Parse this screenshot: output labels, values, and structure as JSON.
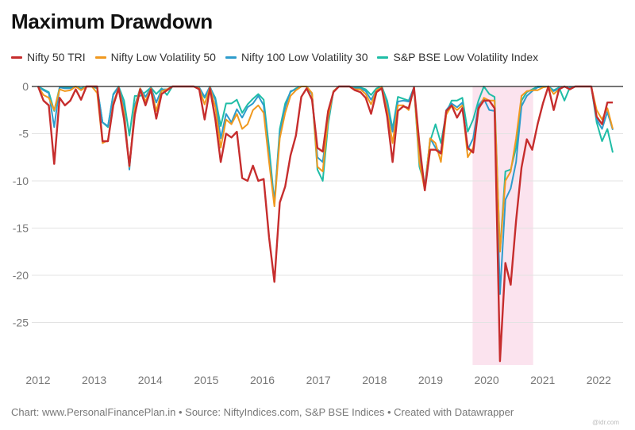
{
  "title": "Maximum Drawdown",
  "footer": "Chart: www.PersonalFinancePlan.in • Source: NiftyIndices.com, S&P BSE Indices • Created with Datawrapper",
  "watermark": "@idr.com",
  "chart_data": {
    "type": "line",
    "title": "Maximum Drawdown",
    "xlabel": "",
    "ylabel": "",
    "ylim": [
      -29.5,
      0
    ],
    "xlim": [
      2012.0,
      2022.25
    ],
    "yticks": [
      0,
      -5,
      -10,
      -15,
      -20,
      -25
    ],
    "xticks": [
      "2012",
      "2013",
      "2014",
      "2015",
      "2016",
      "2017",
      "2018",
      "2019",
      "2020",
      "2021",
      "2022"
    ],
    "grid": true,
    "legend": "top-left",
    "highlight_band": {
      "x_start": 2019.75,
      "x_end": 2020.83,
      "color": "#fbe3ee"
    },
    "series": [
      {
        "name": "Nifty 50 TRI",
        "color": "#c62d2d",
        "values": [
          0,
          -1.5,
          -2,
          -8.2,
          -1.2,
          -2,
          -1.5,
          -0.3,
          -1.4,
          0,
          0,
          0,
          -5.8,
          -5.8,
          -2,
          -0.2,
          -3.5,
          -8.4,
          -3,
          -0.3,
          -2,
          -0.3,
          -3.4,
          -0.8,
          -0.4,
          0,
          0,
          0,
          0,
          0,
          -0.3,
          -3.5,
          -0.2,
          -3.5,
          -8,
          -5,
          -5.4,
          -4.8,
          -9.7,
          -10,
          -8.4,
          -10,
          -9.8,
          -16,
          -20.7,
          -12.3,
          -10.6,
          -7.3,
          -5.2,
          -1.1,
          -0.2,
          -1.4,
          -6.5,
          -6.9,
          -2.6,
          -0.6,
          0,
          0,
          0,
          -0.4,
          -0.6,
          -1.2,
          -2.9,
          -0.6,
          -0.2,
          -3.2,
          -8,
          -2.6,
          -2.1,
          -2.3,
          -0.1,
          -6.1,
          -11,
          -6.7,
          -6.7,
          -7.1,
          -2.6,
          -2,
          -3.3,
          -2.3,
          -6.5,
          -7,
          -2.3,
          -1.5,
          -1.5,
          -2.3,
          -29.1,
          -18.7,
          -21,
          -14.2,
          -8.6,
          -5.6,
          -6.7,
          -4,
          -1.8,
          0,
          -2.5,
          -0.3,
          0,
          -0.3,
          0,
          0,
          0,
          0,
          -3.2,
          -4,
          -1.7,
          -1.7
        ]
      },
      {
        "name": "Nifty Low Volatility 50",
        "color": "#f0991f",
        "values": [
          0,
          -0.9,
          -1.2,
          -2.5,
          -0.3,
          -0.5,
          -0.4,
          0,
          -0.4,
          0,
          0,
          -0.7,
          -6,
          -5.7,
          -1.8,
          -0.1,
          -2.8,
          -8.5,
          -2.4,
          -0.2,
          -1.6,
          -0.2,
          -2.6,
          -0.5,
          -0.3,
          0,
          0,
          0,
          0,
          0,
          -0.2,
          -1.9,
          -0.1,
          -2.2,
          -6.5,
          -3.5,
          -4,
          -2.9,
          -4.5,
          -4,
          -2.5,
          -2,
          -2.8,
          -8,
          -12.7,
          -5.5,
          -2.8,
          -1,
          -0.4,
          0,
          0,
          -0.7,
          -8.5,
          -9,
          -3.3,
          -0.5,
          0,
          0,
          0,
          -0.3,
          -0.3,
          -0.8,
          -1.9,
          -0.4,
          -0.1,
          -2.5,
          -6,
          -2,
          -2,
          -2.5,
          -0.1,
          -8,
          -11,
          -5.5,
          -6,
          -8,
          -3,
          -2,
          -2.5,
          -2,
          -7.5,
          -6.5,
          -2.5,
          -1.2,
          -1.5,
          -1.5,
          -17.5,
          -10,
          -9,
          -5.5,
          -1,
          -0.5,
          -0.4,
          -0.4,
          -0.1,
          0,
          -0.8,
          -0.3,
          0,
          -0.3,
          0,
          0,
          0,
          0,
          -2.5,
          -3.5,
          -2.3,
          -4.5
        ]
      },
      {
        "name": "Nifty 100 Low Volatility 30",
        "color": "#2e9ccc",
        "values": [
          0,
          -0.4,
          -0.7,
          -4.3,
          -0.1,
          -0.2,
          -0.2,
          0,
          -0.3,
          0,
          0,
          -0.1,
          -3.8,
          -4.2,
          -0.9,
          0,
          -2.2,
          -8.8,
          -2,
          -0.2,
          -1.1,
          -0.1,
          -1.7,
          -0.3,
          -0.3,
          0,
          0,
          0,
          0,
          0,
          -0.1,
          -1.1,
          0,
          -1.4,
          -5.5,
          -2.9,
          -3.8,
          -2.4,
          -3.3,
          -2.2,
          -1.8,
          -1,
          -2,
          -7.5,
          -12.3,
          -5,
          -2.2,
          -0.5,
          -0.3,
          0,
          0,
          -0.8,
          -7.5,
          -8,
          -3.6,
          -0.5,
          0,
          0,
          0,
          -0.2,
          -0.2,
          -0.5,
          -1.4,
          -0.4,
          -0.1,
          -2,
          -4.8,
          -1.6,
          -1.5,
          -1.6,
          -0.1,
          -7.2,
          -10.8,
          -5.5,
          -6.5,
          -7,
          -2.5,
          -1.8,
          -2.2,
          -1.7,
          -6.7,
          -5.5,
          -2,
          -1.3,
          -2.5,
          -2.6,
          -22,
          -12,
          -10.8,
          -8,
          -2.1,
          -1,
          -0.5,
          -0.1,
          0,
          0,
          -0.5,
          -0.2,
          0,
          -0.2,
          0,
          0,
          0,
          0,
          -3.5,
          -4.5,
          -2.7,
          -4.6
        ]
      },
      {
        "name": "S&P BSE Low Volatility Index",
        "color": "#1fbda6",
        "values": [
          0,
          -0.3,
          -0.6,
          -2.6,
          -0.1,
          -0.1,
          -0.1,
          0,
          -0.2,
          0,
          0,
          -0.2,
          -3.8,
          -4.3,
          -0.8,
          0,
          -1.5,
          -5.2,
          -1,
          -1,
          -0.6,
          -0.1,
          -0.8,
          -0.2,
          -0.9,
          0,
          0,
          0,
          0,
          0,
          -0.2,
          -1.2,
          -0.1,
          -1.2,
          -4.2,
          -1.8,
          -1.8,
          -1.4,
          -2.8,
          -1.9,
          -1.3,
          -0.8,
          -1.4,
          -6.5,
          -12.3,
          -4.5,
          -1.8,
          -0.6,
          -0.2,
          0,
          0,
          -0.8,
          -8.8,
          -10,
          -4,
          -0.5,
          0,
          0,
          0,
          -0.1,
          -0.1,
          -0.3,
          -0.9,
          -0.2,
          0,
          -1.5,
          -4.5,
          -1.1,
          -1.3,
          -1.5,
          -0.1,
          -8.5,
          -10.5,
          -5.8,
          -4,
          -6,
          -2.8,
          -1.5,
          -1.5,
          -1.2,
          -4.8,
          -3.5,
          -1.5,
          0,
          -0.8,
          -1.1,
          -17.5,
          -9,
          -8.8,
          -6.5,
          -1.5,
          -0.6,
          -0.3,
          0,
          0,
          0,
          -0.4,
          -0.1,
          -1.5,
          -0.1,
          0,
          0,
          0,
          0,
          -3.8,
          -5.8,
          -4.5,
          -7
        ]
      }
    ]
  }
}
